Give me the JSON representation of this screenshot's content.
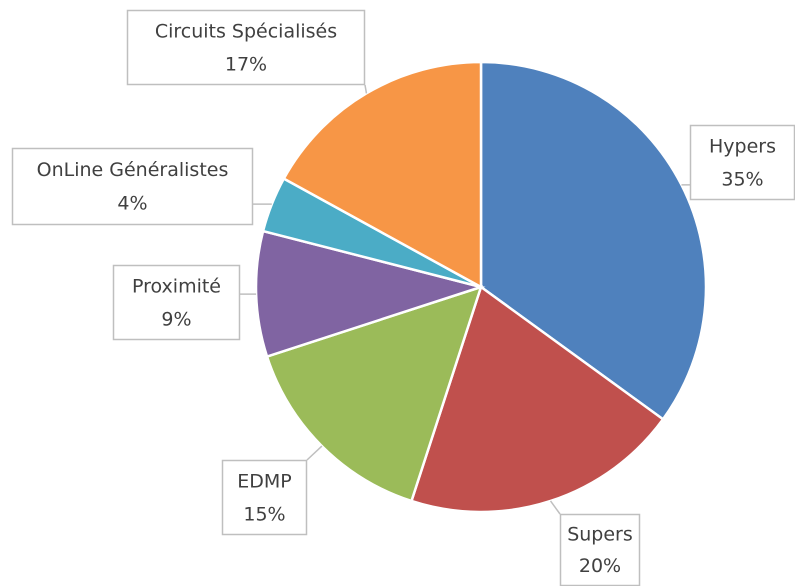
{
  "chart_data": {
    "type": "pie",
    "categories": [
      "Hypers",
      "Supers",
      "EDMP",
      "Proximité",
      "OnLine Généralistes",
      "Circuits Spécialisés"
    ],
    "values": [
      35,
      20,
      15,
      9,
      4,
      17
    ],
    "value_labels": [
      "35%",
      "20%",
      "15%",
      "9%",
      "4%",
      "17%"
    ],
    "colors": [
      "#4f81bd",
      "#c0504d",
      "#9bbb59",
      "#8064a2",
      "#4bacc6",
      "#f79646"
    ]
  }
}
